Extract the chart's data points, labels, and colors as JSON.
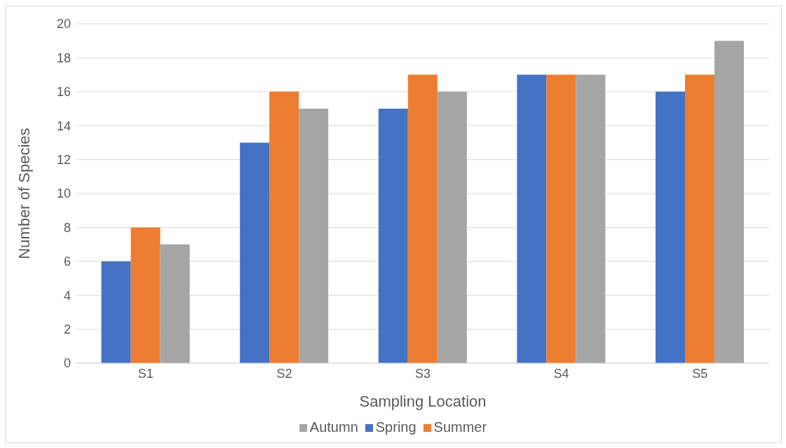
{
  "chart_data": {
    "type": "bar",
    "xlabel": "Sampling Location",
    "ylabel": "Number of Species",
    "categories": [
      "S1",
      "S2",
      "S3",
      "S4",
      "S5"
    ],
    "series": [
      {
        "name": "Spring",
        "color": "#4472c4",
        "values": [
          6,
          13,
          15,
          17,
          16
        ]
      },
      {
        "name": "Summer",
        "color": "#ed7d31",
        "values": [
          8,
          16,
          17,
          17,
          17
        ]
      },
      {
        "name": "Autumn",
        "color": "#a5a5a5",
        "values": [
          7,
          15,
          16,
          17,
          19
        ]
      }
    ],
    "ylim": [
      0,
      20
    ],
    "yticks": [
      0,
      2,
      4,
      6,
      8,
      10,
      12,
      14,
      16,
      18,
      20
    ],
    "grid": "y",
    "legend": "bottom"
  }
}
